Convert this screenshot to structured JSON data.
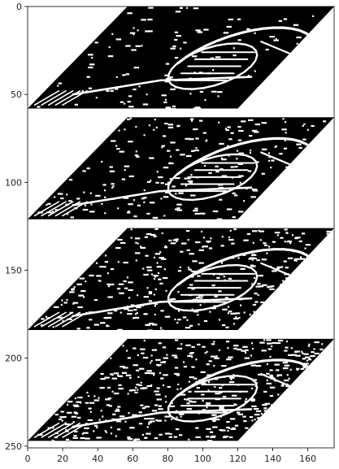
{
  "chart_data": {
    "type": "heatmap",
    "title": "",
    "xlabel": "",
    "ylabel": "",
    "xlim": [
      0,
      175
    ],
    "ylim": [
      251,
      0
    ],
    "x_ticks": [
      0,
      20,
      40,
      60,
      80,
      100,
      120,
      140,
      160
    ],
    "y_ticks": [
      0,
      50,
      100,
      150,
      200,
      250
    ],
    "colormap": "binary (black/white)",
    "panels": [
      {
        "name": "",
        "y_range": [
          0,
          58
        ],
        "x_top": [
          57,
          175
        ],
        "x_bottom": [
          0,
          120
        ]
      },
      {
        "name": "",
        "y_range": [
          63,
          121
        ],
        "x_top": [
          57,
          175
        ],
        "x_bottom": [
          0,
          120
        ]
      },
      {
        "name": "",
        "y_range": [
          126,
          184
        ],
        "x_top": [
          57,
          175
        ],
        "x_bottom": [
          0,
          120
        ]
      },
      {
        "name": "",
        "y_range": [
          189,
          247
        ],
        "x_top": [
          57,
          175
        ],
        "x_bottom": [
          0,
          120
        ]
      }
    ]
  },
  "colors": {
    "background": "#ffffff",
    "image_dark": "#000000",
    "image_light": "#ffffff",
    "axis": "#000000"
  }
}
